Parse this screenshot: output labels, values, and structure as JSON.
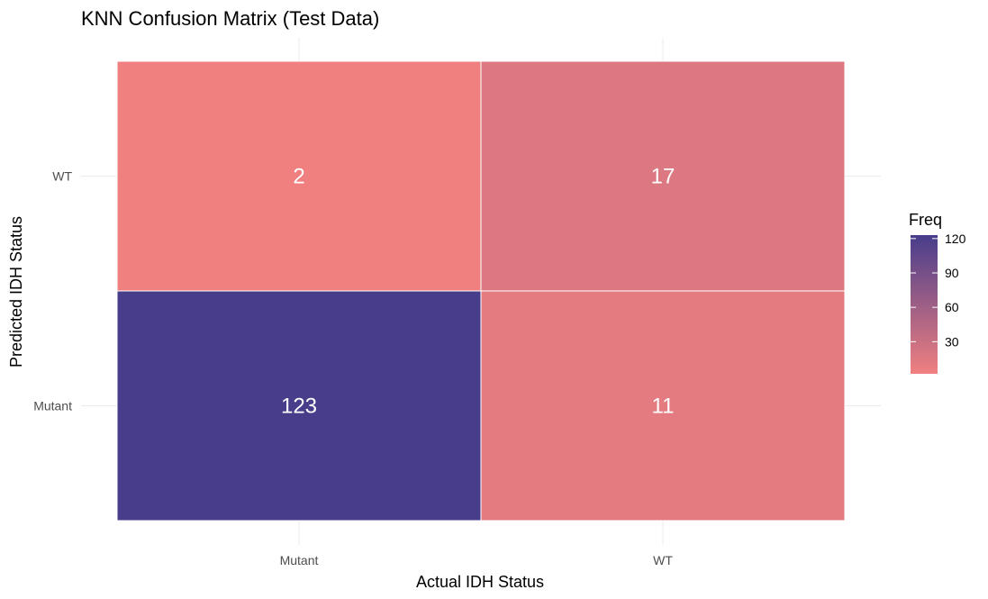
{
  "chart_data": {
    "type": "heatmap",
    "title": "KNN Confusion Matrix (Test Data)",
    "xlabel": "Actual IDH Status",
    "ylabel": "Predicted IDH Status",
    "x_categories": [
      "Mutant",
      "WT"
    ],
    "y_categories": [
      "Mutant",
      "WT"
    ],
    "cells": [
      {
        "x": "Mutant",
        "y": "WT",
        "value": 2
      },
      {
        "x": "WT",
        "y": "WT",
        "value": 17
      },
      {
        "x": "Mutant",
        "y": "Mutant",
        "value": 123
      },
      {
        "x": "WT",
        "y": "Mutant",
        "value": 11
      }
    ],
    "legend": {
      "title": "Freq",
      "ticks": [
        30,
        60,
        90,
        120
      ],
      "range": [
        2,
        123
      ],
      "low_color": "#f08080",
      "high_color": "#483d8b"
    },
    "grid": true,
    "legend_position": "right"
  }
}
